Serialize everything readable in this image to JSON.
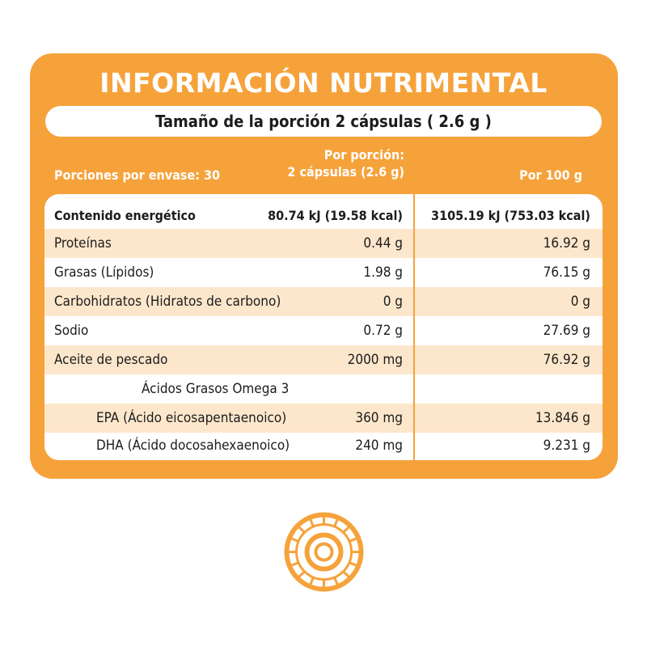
{
  "title": "INFORMACIÓN NUTRIMENTAL",
  "portion_size": "Tamaño de la porción 2 cápsulas ( 2.6 g )",
  "header": {
    "servings": "Porciones por envase: 30",
    "per_portion_line1": "Por porción:",
    "per_portion_line2": "2 cápsulas (2.6 g)",
    "per_100": "Por 100 g"
  },
  "rows": [
    {
      "label": "Contenido energético",
      "per": "80.74 kJ (19.58 kcal)",
      "per100": "3105.19 kJ (753.03 kcal)"
    },
    {
      "label": "Proteínas",
      "per": "0.44 g",
      "per100": "16.92 g"
    },
    {
      "label": "Grasas (Lípidos)",
      "per": "1.98 g",
      "per100": "76.15 g"
    },
    {
      "label": "Carbohidratos (Hidratos de carbono)",
      "per": "0 g",
      "per100": "0 g"
    },
    {
      "label": "Sodio",
      "per": "0.72 g",
      "per100": "27.69 g"
    },
    {
      "label": "Aceite de pescado",
      "per": "2000 mg",
      "per100": "76.92 g"
    },
    {
      "label": "Ácidos Grasos Omega 3",
      "per": "",
      "per100": ""
    },
    {
      "label": "EPA (Ácido eicosapentaenoico)",
      "per": "360 mg",
      "per100": "13.846 g"
    },
    {
      "label": "DHA (Ácido docosahexaenoico)",
      "per": "240 mg",
      "per100": "9.231 g"
    }
  ],
  "colors": {
    "accent": "#F6A23B",
    "row_shade": "#FDE7CC"
  },
  "icons": {
    "emblem": "orange-circular-logo-icon"
  }
}
